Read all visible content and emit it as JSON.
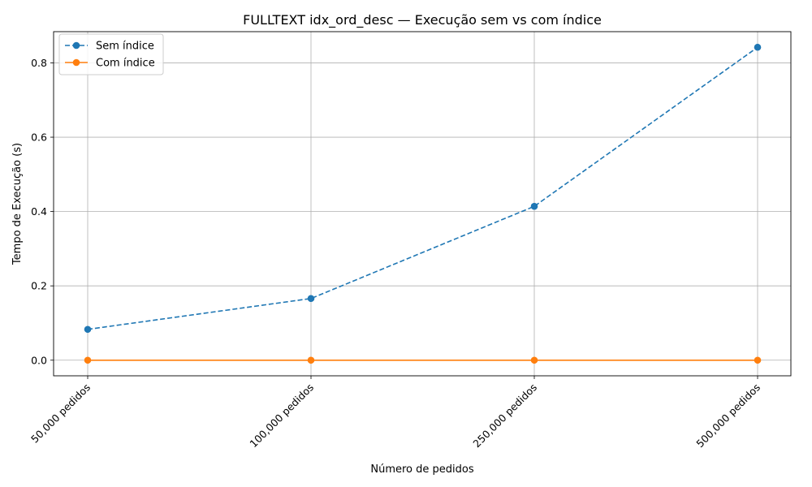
{
  "chart_data": {
    "type": "line",
    "title": "FULLTEXT idx_ord_desc — Execução sem vs com índice",
    "xlabel": "Número de pedidos",
    "ylabel": "Tempo de Execução (s)",
    "categories": [
      "50,000 pedidos",
      "100,000 pedidos",
      "250,000 pedidos",
      "500,000 pedidos"
    ],
    "ylim": [
      -0.042,
      0.884
    ],
    "yticks": [
      0.0,
      0.2,
      0.4,
      0.6,
      0.8
    ],
    "ytick_labels": [
      "0.0",
      "0.2",
      "0.4",
      "0.6",
      "0.8"
    ],
    "grid": true,
    "legend_position": "top-left",
    "series": [
      {
        "name": "Sem índice",
        "values": [
          0.083,
          0.166,
          0.414,
          0.842
        ],
        "color": "#1f77b4",
        "line_style": "dashed",
        "marker": "circle"
      },
      {
        "name": "Com índice",
        "values": [
          0.0,
          0.0,
          0.0,
          0.0
        ],
        "color": "#ff7f0e",
        "line_style": "solid",
        "marker": "circle"
      }
    ]
  }
}
